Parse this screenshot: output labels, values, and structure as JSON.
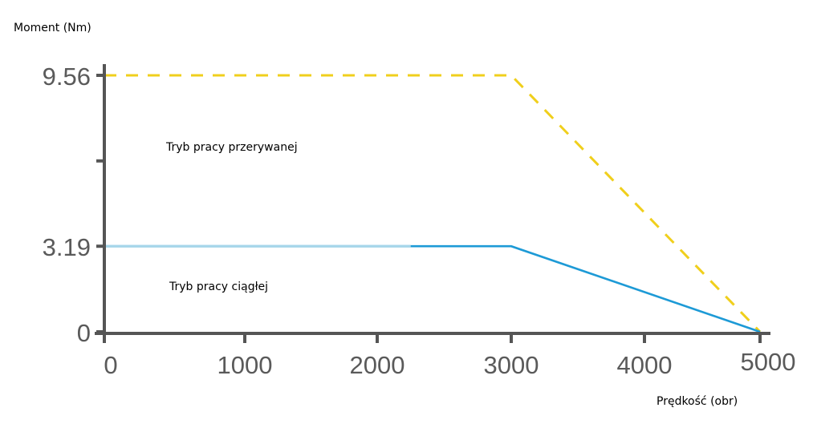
{
  "chart_data": {
    "type": "line",
    "title": "",
    "ylabel": "Moment (Nm)",
    "xlabel": "Prędkość (obr)",
    "xlim": [
      0,
      5000
    ],
    "ylim": [
      0,
      9.56
    ],
    "grid": false,
    "x_ticks": [
      {
        "value": 0,
        "label": "0"
      },
      {
        "value": 1000,
        "label": "1000"
      },
      {
        "value": 2000,
        "label": "2000"
      },
      {
        "value": 3000,
        "label": "3000"
      },
      {
        "value": 4000,
        "label": "4000"
      },
      {
        "value": 5000,
        "label": "5000"
      }
    ],
    "y_ticks": [
      {
        "value": 0,
        "label": "0"
      },
      {
        "value": 3.19,
        "label": "3.19"
      },
      {
        "value": 6.37,
        "label": ""
      },
      {
        "value": 9.56,
        "label": "9.56"
      }
    ],
    "series": [
      {
        "name": "Tryb pracy przerywanej",
        "style": "dashed",
        "color": "#f0cf1c",
        "x": [
          0,
          3000,
          5000
        ],
        "y": [
          9.56,
          9.56,
          0
        ]
      },
      {
        "name": "Tryb pracy ciągłej",
        "style": "solid",
        "color": "#1d9ad6",
        "light_color": "#a6d6ea",
        "light_until": 2250,
        "x": [
          0,
          3000,
          5000
        ],
        "y": [
          3.19,
          3.19,
          0
        ]
      }
    ],
    "annotations": [
      {
        "text": "Tryb pracy przerywanej",
        "x": 450,
        "y": 7.2
      },
      {
        "text": "Tryb pracy ciągłej",
        "x": 470,
        "y": 1.8
      }
    ]
  }
}
